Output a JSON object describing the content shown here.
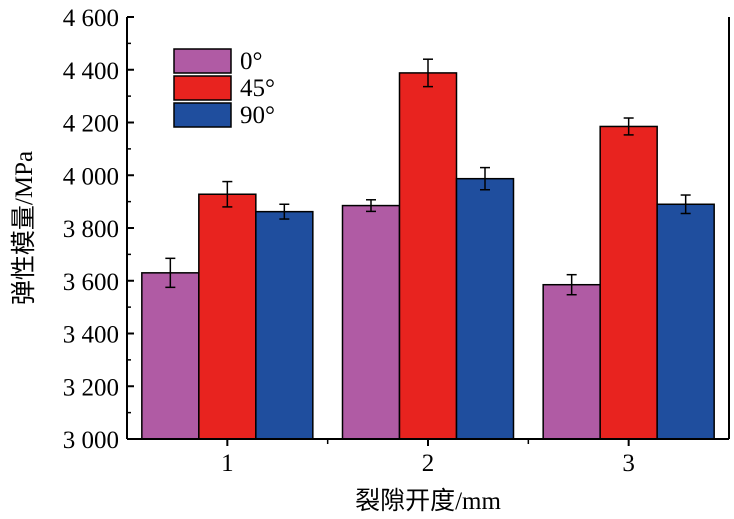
{
  "chart_data": {
    "type": "bar",
    "title": "",
    "xlabel": "裂隙开度/mm",
    "ylabel": "弹性模量/MPa",
    "categories": [
      "1",
      "2",
      "3"
    ],
    "ylim": [
      3000,
      4600
    ],
    "yticks": [
      "3 000",
      "3 200",
      "3 400",
      "3 600",
      "3 800",
      "4 000",
      "4 200",
      "4 400",
      "4 600"
    ],
    "legend_position": "top-left",
    "series": [
      {
        "name": "0°",
        "color": "#b05ba4",
        "values": [
          3630,
          3885,
          3585
        ],
        "errors": [
          55,
          22,
          38
        ]
      },
      {
        "name": "45°",
        "color": "#e8231f",
        "values": [
          3928,
          4388,
          4185
        ],
        "errors": [
          48,
          52,
          32
        ]
      },
      {
        "name": "90°",
        "color": "#1f4e9e",
        "values": [
          3862,
          3987,
          3890
        ],
        "errors": [
          28,
          42,
          35
        ]
      }
    ]
  }
}
